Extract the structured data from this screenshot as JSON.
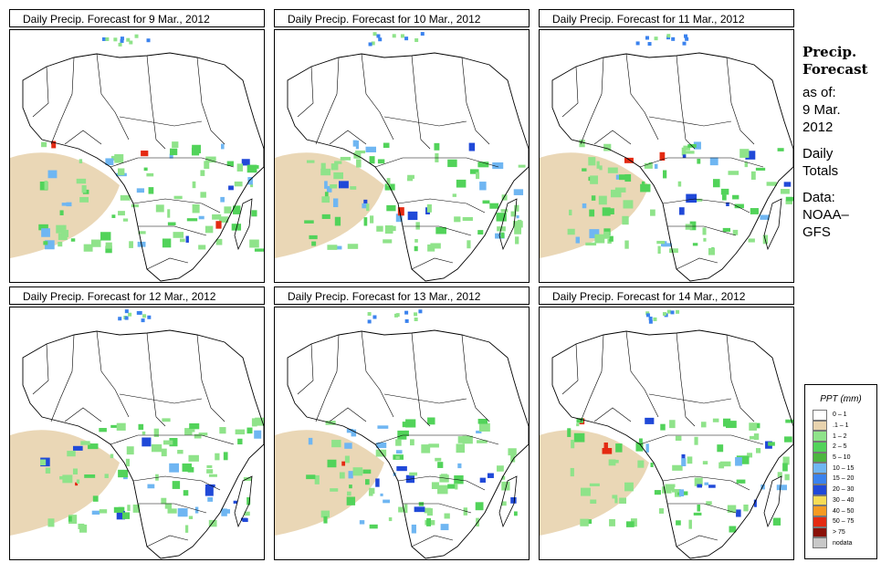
{
  "panels": [
    {
      "title": "Daily Precip. Forecast for  9 Mar., 2012"
    },
    {
      "title": "Daily Precip. Forecast for  10 Mar., 2012"
    },
    {
      "title": "Daily Precip. Forecast for  11 Mar., 2012"
    },
    {
      "title": "Daily Precip. Forecast for  12 Mar., 2012"
    },
    {
      "title": "Daily Precip. Forecast for  13 Mar., 2012"
    },
    {
      "title": "Daily Precip. Forecast for  14 Mar., 2012"
    }
  ],
  "side": {
    "heading_1": "Precip.",
    "heading_2": "Forecast",
    "as_of_1": "as of:",
    "as_of_2": "9 Mar.",
    "as_of_3": "2012",
    "totals_1": "Daily",
    "totals_2": "Totals",
    "data_1": "Data:",
    "data_2": "NOAA–",
    "data_3": "GFS"
  },
  "legend": {
    "title": "PPT (mm)",
    "items": [
      {
        "label": "0 – 1",
        "color": "#ffffff"
      },
      {
        "label": ".1 – 1",
        "color": "#e8d3ae"
      },
      {
        "label": "1 – 2",
        "color": "#8fe38a"
      },
      {
        "label": "2 – 5",
        "color": "#52d35a"
      },
      {
        "label": "5 – 10",
        "color": "#4cb63f"
      },
      {
        "label": "10 – 15",
        "color": "#6fb6f2"
      },
      {
        "label": "15 – 20",
        "color": "#3a82ee"
      },
      {
        "label": "20 – 30",
        "color": "#2049d8"
      },
      {
        "label": "30 – 40",
        "color": "#f7dc55"
      },
      {
        "label": "40 – 50",
        "color": "#f59a22"
      },
      {
        "label": "50 – 75",
        "color": "#e42a12"
      },
      {
        "label": "> 75",
        "color": "#8a1109"
      },
      {
        "label": "nodata",
        "color": "#c8c8c8"
      }
    ]
  }
}
